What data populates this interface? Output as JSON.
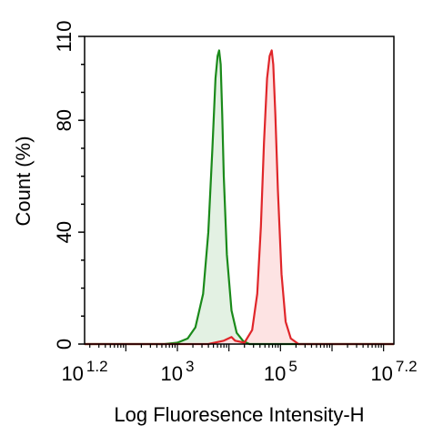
{
  "chart_data": {
    "type": "area",
    "xlabel": "Log Fluoresence Intensity-H",
    "ylabel": "Count  (%)",
    "x_scale": "log10",
    "xlim_log10": [
      1.2,
      7.2
    ],
    "ylim": [
      0,
      110
    ],
    "y_ticks": [
      0,
      40,
      80,
      110
    ],
    "x_ticks": [
      {
        "base": "10",
        "exp": "1.2",
        "log10": 1.2
      },
      {
        "base": "10",
        "exp": "3",
        "log10": 3
      },
      {
        "base": "10",
        "exp": "5",
        "log10": 5
      },
      {
        "base": "10",
        "exp": "7.2",
        "log10": 7.2
      }
    ],
    "grid": false,
    "series": [
      {
        "color": "#1a8a1a",
        "fill": "#e3f1e3",
        "x_log10": [
          1.2,
          2.75,
          3.0,
          3.2,
          3.35,
          3.5,
          3.6,
          3.68,
          3.74,
          3.78,
          3.81,
          3.84,
          3.87,
          3.9,
          3.96,
          4.05,
          4.15,
          4.28,
          4.4,
          7.2
        ],
        "y": [
          0,
          0,
          0.5,
          2,
          6,
          18,
          40,
          70,
          95,
          103,
          105,
          100,
          82,
          60,
          32,
          12,
          4,
          1,
          0,
          0
        ]
      },
      {
        "color": "#e0262a",
        "fill": "#fde3e3",
        "x_log10": [
          1.2,
          3.6,
          3.9,
          4.05,
          4.12,
          4.3,
          4.45,
          4.55,
          4.62,
          4.68,
          4.74,
          4.79,
          4.83,
          4.86,
          4.9,
          4.95,
          5.02,
          5.1,
          5.2,
          5.35,
          7.2
        ],
        "y": [
          0,
          0,
          1.2,
          2.5,
          1.2,
          0.5,
          5,
          18,
          42,
          72,
          95,
          103,
          105,
          100,
          82,
          55,
          25,
          8,
          2,
          0,
          0
        ]
      }
    ]
  }
}
